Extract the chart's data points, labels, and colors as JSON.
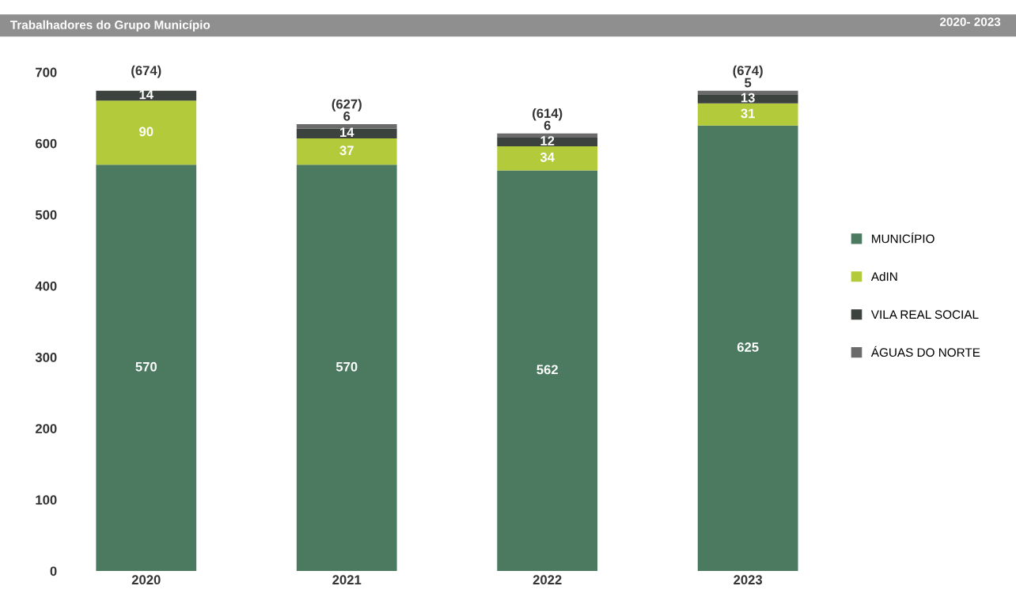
{
  "chart_data": {
    "type": "bar",
    "stacked": true,
    "title": "Trabalhadores do Grupo Município",
    "subtitle": "2020- 2023",
    "categories": [
      "2020",
      "2021",
      "2022",
      "2023"
    ],
    "series": [
      {
        "name": "MUNICÍPIO",
        "color": "#4b7a60",
        "values": [
          570,
          570,
          562,
          625
        ],
        "value_labels": [
          "570",
          "570",
          "562",
          "625"
        ]
      },
      {
        "name": "AdIN",
        "color": "#b3cb3a",
        "values": [
          90,
          37,
          34,
          31
        ],
        "value_labels": [
          "90",
          "37",
          "34",
          "31"
        ]
      },
      {
        "name": "VILA REAL SOCIAL",
        "color": "#3c423e",
        "values": [
          14,
          14,
          12,
          13
        ],
        "value_labels": [
          "14",
          "14",
          "12",
          "13"
        ]
      },
      {
        "name": "ÁGUAS DO NORTE",
        "color": "#6b6b6b",
        "values": [
          0,
          6,
          6,
          5
        ],
        "value_labels": [
          null,
          "6",
          "6",
          "5"
        ]
      }
    ],
    "totals": [
      "(674)",
      "(627)",
      "(614)",
      "(674)"
    ],
    "ylim": [
      0,
      700
    ],
    "yticks": [
      0,
      100,
      200,
      300,
      400,
      500,
      600,
      700
    ],
    "grid": false,
    "legend": "right"
  }
}
